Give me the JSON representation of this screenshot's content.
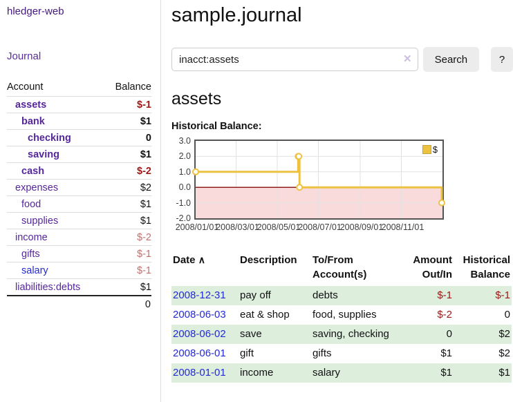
{
  "app": {
    "brand": "hledger-web",
    "nav": {
      "journal": "Journal"
    }
  },
  "sidebar": {
    "columns": {
      "account": "Account",
      "balance": "Balance"
    },
    "accounts": [
      {
        "name": "assets",
        "balance": "$-1",
        "depth": 1,
        "bold": true,
        "balance_tone": "negative-strong"
      },
      {
        "name": "bank",
        "balance": "$1",
        "depth": 2,
        "bold": true,
        "balance_tone": "normal"
      },
      {
        "name": "checking",
        "balance": "0",
        "depth": 3,
        "bold": true,
        "balance_tone": "normal"
      },
      {
        "name": "saving",
        "balance": "$1",
        "depth": 3,
        "bold": true,
        "balance_tone": "normal"
      },
      {
        "name": "cash",
        "balance": "$-2",
        "depth": 2,
        "bold": true,
        "balance_tone": "negative-strong"
      },
      {
        "name": "expenses",
        "balance": "$2",
        "depth": 1,
        "bold": false,
        "balance_tone": "normal"
      },
      {
        "name": "food",
        "balance": "$1",
        "depth": 2,
        "bold": false,
        "balance_tone": "normal"
      },
      {
        "name": "supplies",
        "balance": "$1",
        "depth": 2,
        "bold": false,
        "balance_tone": "normal"
      },
      {
        "name": "income",
        "balance": "$-2",
        "depth": 1,
        "bold": false,
        "balance_tone": "negative-muted"
      },
      {
        "name": "gifts",
        "balance": "$-1",
        "depth": 2,
        "bold": false,
        "balance_tone": "negative-muted"
      },
      {
        "name": "salary",
        "balance": "$-1",
        "depth": 2,
        "bold": false,
        "balance_tone": "negative-muted"
      },
      {
        "name": "liabilities:debts",
        "balance": "$1",
        "depth": 1,
        "bold": false,
        "balance_tone": "normal"
      }
    ],
    "total": "0"
  },
  "header": {
    "title": "sample.journal"
  },
  "search": {
    "value": "inacct:assets",
    "clear_glyph": "✕",
    "button_label": "Search",
    "help_label": "?"
  },
  "account_page": {
    "heading": "assets"
  },
  "chart_data": {
    "type": "line",
    "style": "steps",
    "title": "Historical Balance:",
    "x_range": [
      "2008-01-01",
      "2009-01-01"
    ],
    "ylim": [
      -2,
      3
    ],
    "y_ticks": [
      3.0,
      2.0,
      1.0,
      0.0,
      -1.0,
      -2.0
    ],
    "x_ticks": [
      "2008/01/01",
      "2008/03/01",
      "2008/05/01",
      "2008/07/01",
      "2008/09/01",
      "2008/11/01"
    ],
    "series": [
      {
        "name": "$",
        "color": "#edc240",
        "points": [
          [
            "2008-01-01",
            1
          ],
          [
            "2008-06-01",
            2
          ],
          [
            "2008-06-02",
            2
          ],
          [
            "2008-06-03",
            0
          ],
          [
            "2008-12-31",
            -1
          ]
        ]
      }
    ],
    "legend_position": "top-right",
    "grid": true,
    "negative_fill": "#f9dbdb",
    "zero_line_color": "#8f1d1d"
  },
  "register": {
    "sort_glyph": "∧",
    "columns": {
      "date": "Date",
      "description": "Description",
      "accounts_line1": "To/From",
      "accounts_line2": "Account(s)",
      "amount_line1": "Amount",
      "amount_line2": "Out/In",
      "balance_line1": "Historical",
      "balance_line2": "Balance"
    },
    "rows": [
      {
        "date": "2008-12-31",
        "description": "pay off",
        "accounts": "debts",
        "amount": "$-1",
        "balance": "$-1"
      },
      {
        "date": "2008-06-03",
        "description": "eat & shop",
        "accounts": "food, supplies",
        "amount": "$-2",
        "balance": "0"
      },
      {
        "date": "2008-06-02",
        "description": "save",
        "accounts": "saving, checking",
        "amount": "0",
        "balance": "$2"
      },
      {
        "date": "2008-06-01",
        "description": "gift",
        "accounts": "gifts",
        "amount": "$1",
        "balance": "$2"
      },
      {
        "date": "2008-01-01",
        "description": "income",
        "accounts": "salary",
        "amount": "$1",
        "balance": "$1"
      }
    ]
  }
}
